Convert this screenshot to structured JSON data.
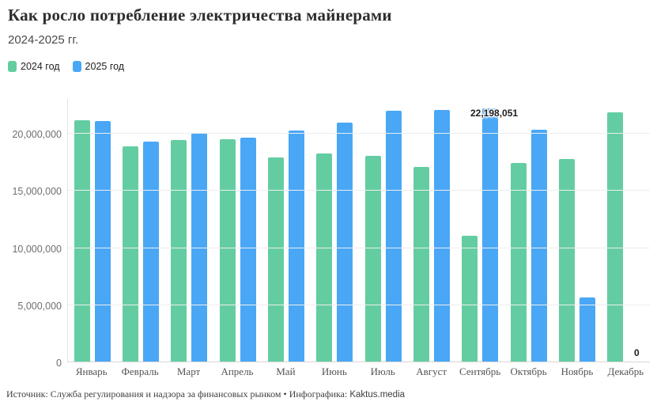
{
  "header": {
    "title": "Как росло потребление электричества майнерами",
    "subtitle": "2024-2025 гг."
  },
  "legend": [
    {
      "label": "2024 год",
      "color": "#63cda1"
    },
    {
      "label": "2025 год",
      "color": "#49a7f5"
    }
  ],
  "footer": {
    "source": "Источник: Служба регулирования и надзора за финансовых рынком • Инфографика: ",
    "brand": "Kaktus.media"
  },
  "chart_data": {
    "type": "bar",
    "title": "Как росло потребление электричества майнерами",
    "subtitle": "2024-2025 гг.",
    "categories": [
      "Январь",
      "Февраль",
      "Март",
      "Апрель",
      "Май",
      "Июнь",
      "Июль",
      "Август",
      "Сентябрь",
      "Октябрь",
      "Ноябрь",
      "Декабрь"
    ],
    "series": [
      {
        "name": "2024 год",
        "color": "#63cda1",
        "values": [
          21200000,
          18900000,
          19450000,
          19550000,
          17900000,
          18300000,
          18050000,
          17100000,
          11050000,
          17450000,
          17800000,
          21850000
        ]
      },
      {
        "name": "2025 год",
        "color": "#49a7f5",
        "values": [
          21100000,
          19300000,
          20050000,
          19650000,
          20300000,
          20950000,
          22000000,
          22050000,
          22198051,
          20350000,
          5700000,
          0
        ]
      }
    ],
    "ylim": [
      0,
      22198051
    ],
    "yticks": [
      0,
      5000000,
      10000000,
      15000000,
      20000000
    ],
    "ytick_labels": [
      "0",
      "5,000,000",
      "10,000,000",
      "15,000,000",
      "20,000,000"
    ],
    "grid": true,
    "legend_position": "top-left",
    "annotations": [
      {
        "series": "2025 год",
        "category": "Сентябрь",
        "label": "22,198,051"
      },
      {
        "series": "2025 год",
        "category": "Декабрь",
        "label": "0"
      }
    ]
  }
}
